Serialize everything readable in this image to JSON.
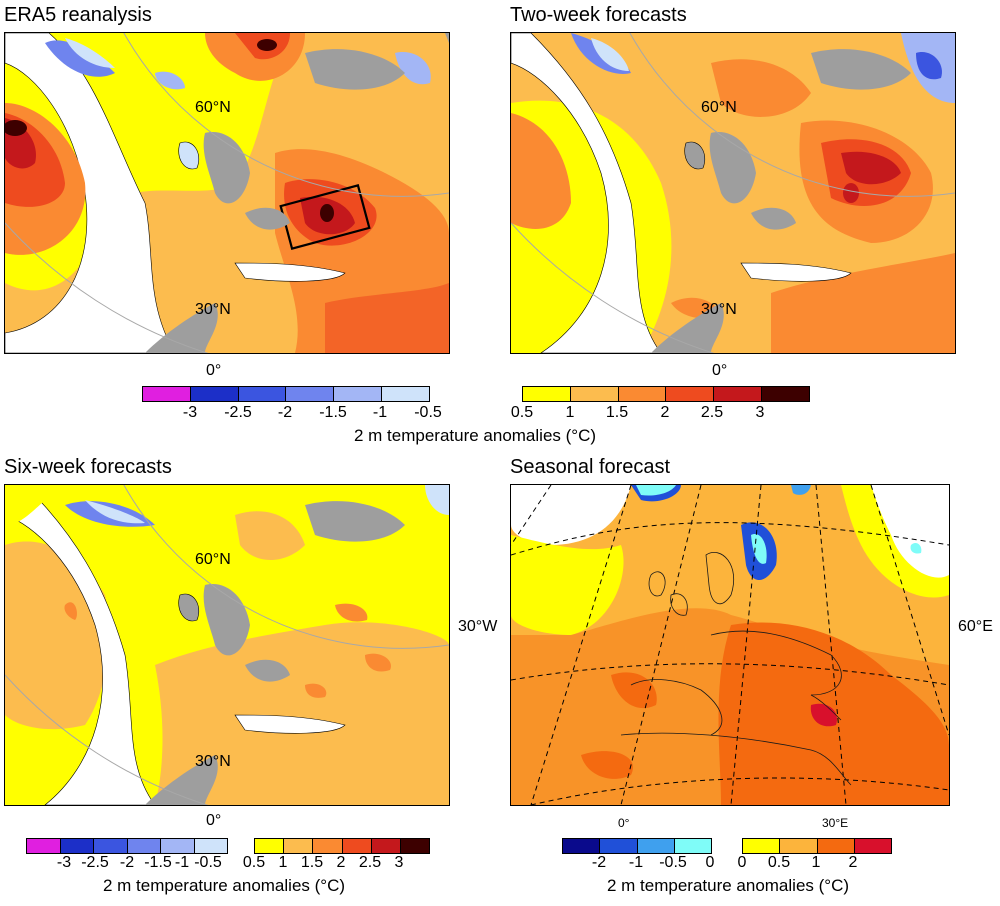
{
  "panels": {
    "era5": {
      "title": "ERA5 reanalysis",
      "lat60": "60°N",
      "lat30": "30°N",
      "lon0": "0°"
    },
    "two_week": {
      "title": "Two-week forecasts",
      "lat60": "60°N",
      "lat30": "30°N",
      "lon0": "0°"
    },
    "six_week": {
      "title": "Six-week forecasts",
      "lat60": "60°N",
      "lat30": "30°N",
      "lon0": "0°"
    },
    "seasonal": {
      "title": "Seasonal forecast",
      "lon_w": "30°W",
      "lon_e": "60°E",
      "lon0": "0°",
      "lon30e": "30°E"
    }
  },
  "colorbars": {
    "top": {
      "cold_ticks": [
        "-3",
        "-2.5",
        "-2",
        "-1.5",
        "-1",
        "-0.5"
      ],
      "warm_ticks": [
        "0.5",
        "1",
        "1.5",
        "2",
        "2.5",
        "3"
      ],
      "caption": "2 m temperature anomalies (°C)",
      "cold_colors": [
        "#e01fe0",
        "#1c2fc8",
        "#3b55e0",
        "#6f84ee",
        "#a3b6f5",
        "#cfe3fa"
      ],
      "warm_colors": [
        "#ffff00",
        "#fcbc4e",
        "#fa8a32",
        "#ee4b1f",
        "#c4181c",
        "#3d0000"
      ]
    },
    "bottom_left": {
      "cold_ticks": [
        "-3",
        "-2.5",
        "-2",
        "-1.5",
        "-1",
        "-0.5"
      ],
      "warm_ticks": [
        "0.5",
        "1",
        "1.5",
        "2",
        "2.5",
        "3"
      ],
      "caption": "2 m temperature anomalies (°C)",
      "cold_colors": [
        "#e01fe0",
        "#1c2fc8",
        "#3b55e0",
        "#6f84ee",
        "#a3b6f5",
        "#cfe3fa"
      ],
      "warm_colors": [
        "#ffff00",
        "#fcbc4e",
        "#fa8a32",
        "#ee4b1f",
        "#c4181c",
        "#3d0000"
      ]
    },
    "bottom_right": {
      "cold_ticks": [
        "-2",
        "-1",
        "-0.5",
        "0"
      ],
      "warm_ticks": [
        "0",
        "0.5",
        "1",
        "2"
      ],
      "caption": "2 m temperature anomalies (°C)",
      "cold_colors": [
        "#0a0a8c",
        "#2050d8",
        "#3fa0ee",
        "#7ffcf8"
      ],
      "warm_colors": [
        "#ffff00",
        "#fcb43c",
        "#f46a10",
        "#d8102c"
      ]
    }
  }
}
